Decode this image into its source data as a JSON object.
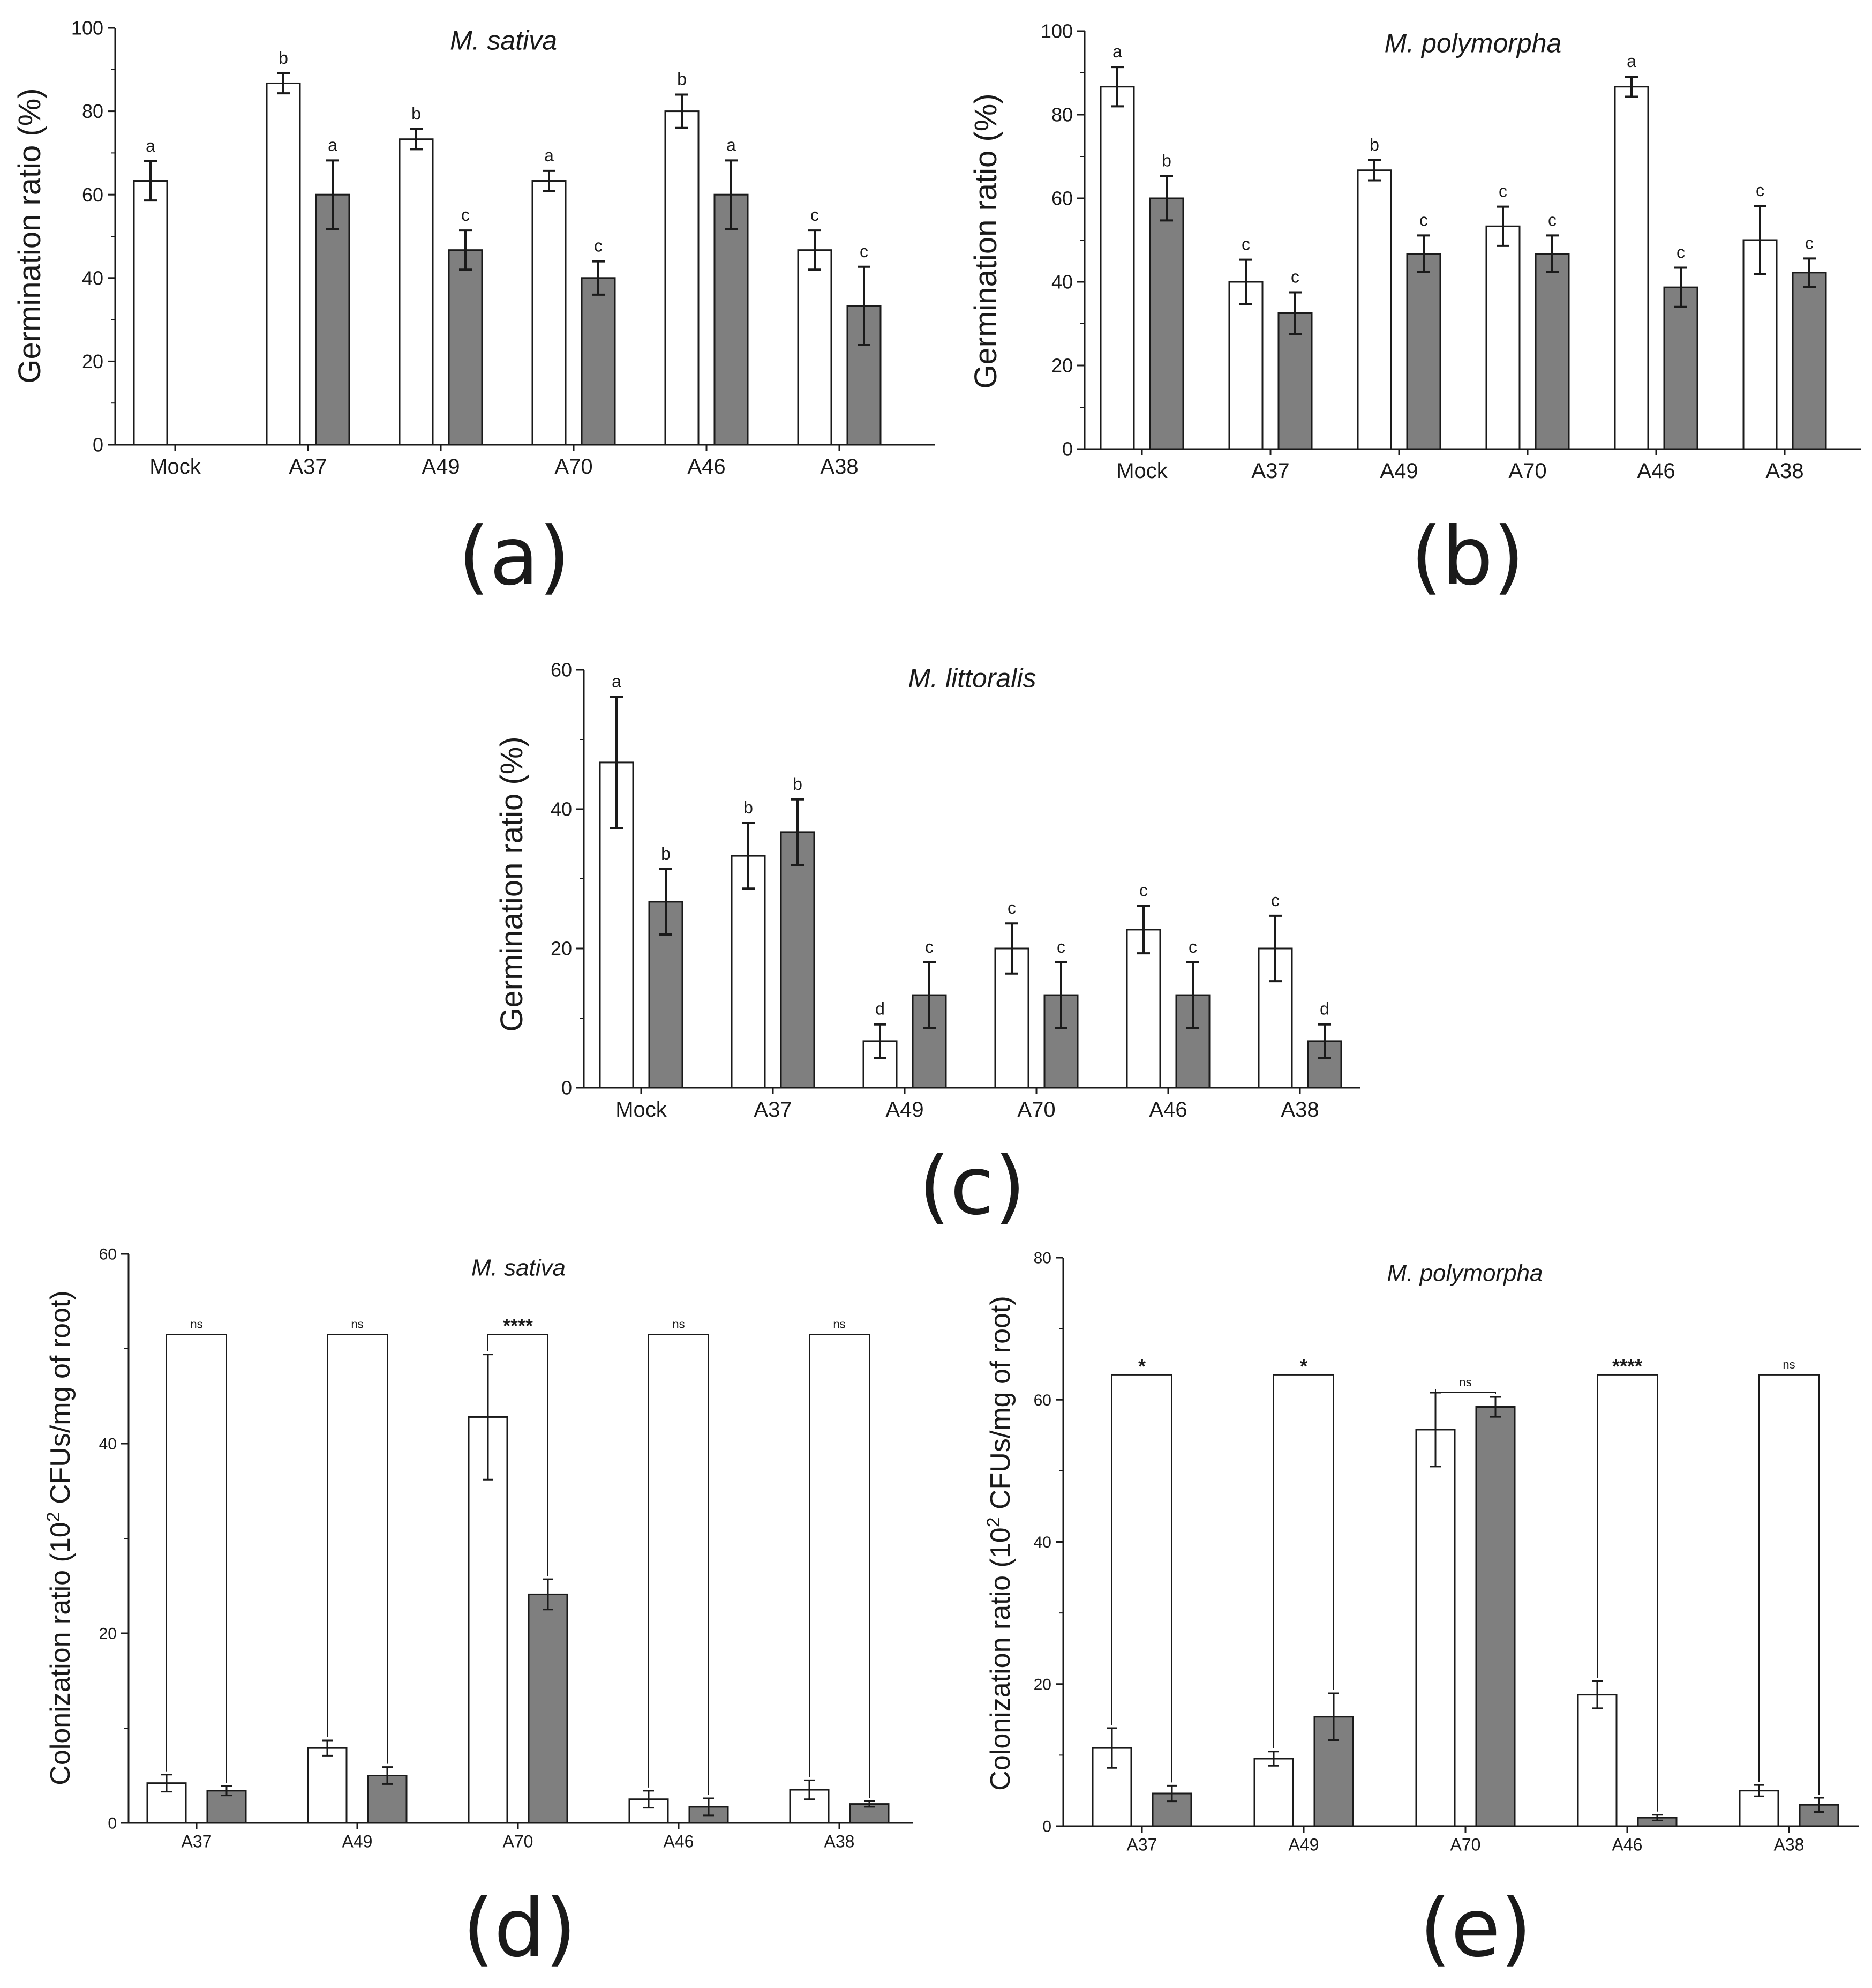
{
  "colors": {
    "bar_fill_a": "#ffffff",
    "bar_fill_b": "#7f7f7f",
    "stroke": "#1a1a1a"
  },
  "chart_data": [
    {
      "id": "a",
      "panel_label": "(a)",
      "type": "bar",
      "title": "M. sativa",
      "ylabel": "Germination ratio (%)",
      "xlabel": "",
      "categories": [
        "Mock",
        "A37",
        "A49",
        "A70",
        "A46",
        "A38"
      ],
      "ylim": [
        0,
        100
      ],
      "yticks": [
        "0",
        "20",
        "40",
        "60",
        "80",
        "100"
      ],
      "series": [
        {
          "name": "white",
          "values": [
            63.3,
            86.7,
            73.3,
            63.3,
            80.0,
            46.7
          ],
          "errors": [
            4.7,
            2.4,
            2.4,
            2.4,
            4.0,
            4.7
          ],
          "letters": [
            "a",
            "b",
            "b",
            "a",
            "b",
            "c"
          ]
        },
        {
          "name": "grey",
          "values": [
            null,
            60.0,
            46.7,
            40.0,
            60.0,
            33.3
          ],
          "errors": [
            null,
            8.2,
            4.7,
            4.0,
            8.2,
            9.4
          ],
          "letters": [
            "",
            "a",
            "c",
            "c",
            "a",
            "c"
          ]
        }
      ]
    },
    {
      "id": "b",
      "panel_label": "(b)",
      "type": "bar",
      "title": "M. polymorpha",
      "ylabel": "Germination ratio (%)",
      "xlabel": "",
      "categories": [
        "Mock",
        "A37",
        "A49",
        "A70",
        "A46",
        "A38"
      ],
      "ylim": [
        0,
        100
      ],
      "yticks": [
        "0",
        "20",
        "40",
        "60",
        "80",
        "100"
      ],
      "series": [
        {
          "name": "white",
          "values": [
            86.7,
            40.0,
            66.7,
            53.3,
            86.7,
            50.0
          ],
          "errors": [
            4.7,
            5.3,
            2.4,
            4.7,
            2.4,
            8.2
          ],
          "letters": [
            "a",
            "c",
            "b",
            "c",
            "a",
            "c"
          ]
        },
        {
          "name": "grey",
          "values": [
            60.0,
            32.5,
            46.7,
            46.7,
            38.7,
            42.2
          ],
          "errors": [
            5.3,
            5.0,
            4.4,
            4.4,
            4.7,
            3.4
          ],
          "letters": [
            "b",
            "c",
            "c",
            "c",
            "c",
            "c"
          ]
        }
      ]
    },
    {
      "id": "c",
      "panel_label": "(c)",
      "type": "bar",
      "title": "M. littoralis",
      "ylabel": "Germination ratio (%)",
      "xlabel": "",
      "categories": [
        "Mock",
        "A37",
        "A49",
        "A70",
        "A46",
        "A38"
      ],
      "ylim": [
        0,
        60
      ],
      "yticks": [
        "0",
        "20",
        "40",
        "60"
      ],
      "series": [
        {
          "name": "white",
          "values": [
            46.7,
            33.3,
            6.7,
            20.0,
            22.7,
            20.0
          ],
          "errors": [
            9.4,
            4.7,
            2.4,
            3.6,
            3.4,
            4.7
          ],
          "letters": [
            "a",
            "b",
            "d",
            "c",
            "c",
            "c"
          ]
        },
        {
          "name": "grey",
          "values": [
            26.7,
            36.7,
            13.3,
            13.3,
            13.3,
            6.7
          ],
          "errors": [
            4.7,
            4.7,
            4.7,
            4.7,
            4.7,
            2.4
          ],
          "letters": [
            "b",
            "b",
            "c",
            "c",
            "c",
            "d"
          ]
        }
      ]
    },
    {
      "id": "d",
      "panel_label": "(d)",
      "type": "bar",
      "title": "M. sativa",
      "ylabel": "Colonization ratio (10",
      "ylabel_sup": "2",
      "ylabel_tail": " CFUs/mg of root)",
      "xlabel": "",
      "categories": [
        "A37",
        "A49",
        "A70",
        "A46",
        "A38"
      ],
      "ylim": [
        0,
        60
      ],
      "yticks": [
        "0",
        "20",
        "40",
        "60"
      ],
      "series": [
        {
          "name": "white",
          "values": [
            4.2,
            7.9,
            42.8,
            2.5,
            3.5
          ],
          "errors": [
            0.9,
            0.8,
            6.6,
            0.9,
            1.0
          ]
        },
        {
          "name": "grey",
          "values": [
            3.4,
            5.0,
            24.1,
            1.7,
            2.0
          ],
          "errors": [
            0.5,
            0.9,
            1.6,
            0.9,
            0.3
          ]
        }
      ],
      "significance": [
        "ns",
        "ns",
        "****",
        "ns",
        "ns"
      ],
      "sig_bracket_y": [
        51.5,
        51.5,
        51.5,
        51.5,
        51.5
      ]
    },
    {
      "id": "e",
      "panel_label": "(e)",
      "type": "bar",
      "title": "M. polymorpha",
      "ylabel": "Colonization ratio (10",
      "ylabel_sup": "2",
      "ylabel_tail": " CFUs/mg of root)",
      "xlabel": "",
      "categories": [
        "A37",
        "A49",
        "A70",
        "A46",
        "A38"
      ],
      "ylim": [
        0,
        80
      ],
      "yticks": [
        "0",
        "20",
        "40",
        "60",
        "80"
      ],
      "series": [
        {
          "name": "white",
          "values": [
            11.0,
            9.5,
            55.8,
            18.5,
            5.0
          ],
          "errors": [
            2.8,
            1.0,
            5.2,
            1.9,
            0.8
          ]
        },
        {
          "name": "grey",
          "values": [
            4.6,
            15.4,
            59.0,
            1.2,
            3.0
          ],
          "errors": [
            1.1,
            3.3,
            1.4,
            0.4,
            1.0
          ]
        }
      ],
      "significance": [
        "*",
        "*",
        "ns",
        "****",
        "ns"
      ],
      "sig_bracket_y": [
        63.5,
        63.5,
        61.0,
        63.5,
        63.5
      ]
    }
  ]
}
